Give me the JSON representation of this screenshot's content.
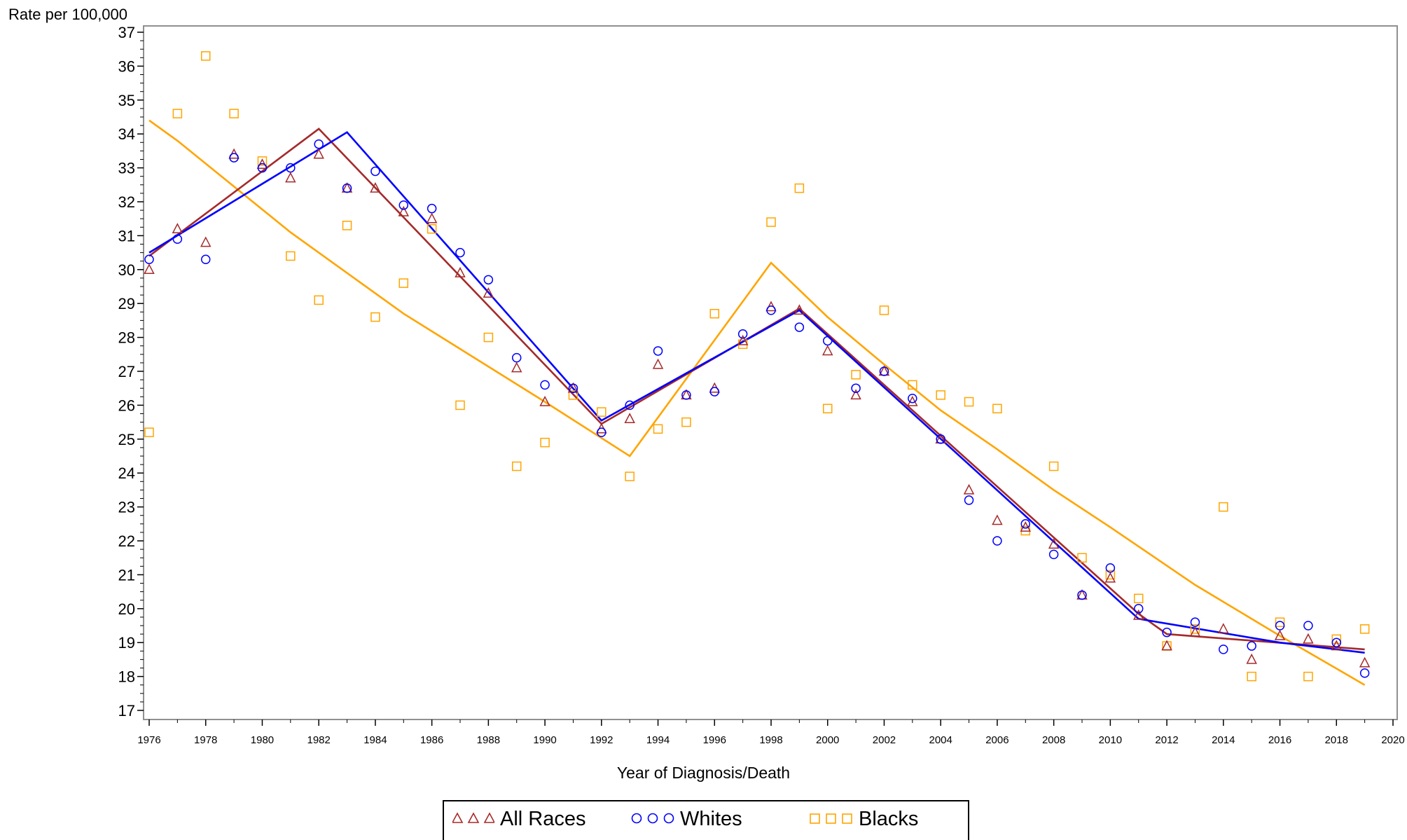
{
  "chart_data": {
    "type": "scatter",
    "ylabel": "Rate per 100,000",
    "xlabel": "Year of Diagnosis/Death",
    "xlim": [
      1976,
      2020
    ],
    "ylim": [
      17,
      37
    ],
    "x_ticks": [
      "1976",
      "1978",
      "1980",
      "1982",
      "1984",
      "1986",
      "1988",
      "1990",
      "1992",
      "1994",
      "1996",
      "1998",
      "2000",
      "2002",
      "2004",
      "2006",
      "2008",
      "2010",
      "2012",
      "2014",
      "2016",
      "2018",
      "2020"
    ],
    "y_ticks": [
      "17",
      "18",
      "19",
      "20",
      "21",
      "22",
      "23",
      "24",
      "25",
      "26",
      "27",
      "28",
      "29",
      "30",
      "31",
      "32",
      "33",
      "34",
      "35",
      "36",
      "37"
    ],
    "x": [
      1976,
      1977,
      1978,
      1979,
      1980,
      1981,
      1982,
      1983,
      1984,
      1985,
      1986,
      1987,
      1988,
      1989,
      1990,
      1991,
      1992,
      1993,
      1994,
      1995,
      1996,
      1997,
      1998,
      1999,
      2000,
      2001,
      2002,
      2003,
      2004,
      2005,
      2006,
      2007,
      2008,
      2009,
      2010,
      2011,
      2012,
      2013,
      2014,
      2015,
      2016,
      2017,
      2018,
      2019
    ],
    "grid": false,
    "legend_position": "bottom",
    "series": [
      {
        "name": "All Races",
        "color": "#a52a2a",
        "marker": "triangle",
        "values": [
          30.0,
          31.2,
          30.8,
          33.4,
          33.1,
          32.7,
          33.4,
          32.4,
          32.4,
          31.7,
          31.5,
          29.9,
          29.3,
          27.1,
          26.1,
          26.5,
          25.3,
          25.6,
          27.2,
          26.3,
          26.5,
          27.9,
          28.9,
          28.8,
          27.6,
          26.3,
          27.0,
          26.1,
          25.0,
          23.5,
          22.6,
          22.4,
          21.9,
          20.4,
          20.9,
          19.8,
          18.9,
          19.3,
          19.4,
          18.5,
          19.2,
          19.1,
          18.9,
          18.4
        ],
        "trend": [
          [
            1976,
            30.4
          ],
          [
            1982,
            34.15
          ],
          [
            1992,
            25.45
          ],
          [
            1999,
            28.85
          ],
          [
            2011,
            19.85
          ],
          [
            2012,
            19.25
          ],
          [
            2019,
            18.8
          ]
        ]
      },
      {
        "name": "Whites",
        "color": "#0000ff",
        "marker": "circle",
        "values": [
          30.3,
          30.9,
          30.3,
          33.3,
          33.0,
          33.0,
          33.7,
          32.4,
          32.9,
          31.9,
          31.8,
          30.5,
          29.7,
          27.4,
          26.6,
          26.5,
          25.2,
          26.0,
          27.6,
          26.3,
          26.4,
          28.1,
          28.8,
          28.3,
          27.9,
          26.5,
          27.0,
          26.2,
          25.0,
          23.2,
          22.0,
          22.5,
          21.6,
          20.4,
          21.2,
          20.0,
          19.3,
          19.6,
          18.8,
          18.9,
          19.5,
          19.5,
          19.0,
          18.1
        ],
        "trend": [
          [
            1976,
            30.5
          ],
          [
            1983,
            34.05
          ],
          [
            1992,
            25.55
          ],
          [
            1999,
            28.8
          ],
          [
            2011,
            19.7
          ],
          [
            2016,
            19.0
          ],
          [
            2019,
            18.7
          ]
        ]
      },
      {
        "name": "Blacks",
        "color": "#ffa500",
        "marker": "square",
        "values": [
          25.2,
          34.6,
          36.3,
          34.6,
          33.2,
          30.4,
          29.1,
          31.3,
          28.6,
          29.6,
          31.2,
          26.0,
          28.0,
          24.2,
          24.9,
          26.3,
          25.8,
          23.9,
          25.3,
          25.5,
          28.7,
          27.8,
          31.4,
          32.4,
          25.9,
          26.9,
          28.8,
          26.6,
          26.3,
          26.1,
          25.9,
          22.3,
          24.2,
          21.5,
          21.0,
          20.3,
          18.9,
          19.4,
          23.0,
          18.0,
          19.6,
          18.0,
          19.1,
          19.4
        ],
        "trend": [
          [
            1976,
            34.4
          ],
          [
            1977,
            33.8
          ],
          [
            1981,
            31.1
          ],
          [
            1985,
            28.7
          ],
          [
            1990,
            26.1
          ],
          [
            1993,
            24.5
          ],
          [
            1998,
            30.2
          ],
          [
            2000,
            28.6
          ],
          [
            2002,
            27.2
          ],
          [
            2004,
            25.85
          ],
          [
            2006,
            24.7
          ],
          [
            2008,
            23.5
          ],
          [
            2010,
            22.4
          ],
          [
            2013,
            20.7
          ],
          [
            2016,
            19.2
          ],
          [
            2019,
            17.75
          ]
        ]
      }
    ]
  }
}
